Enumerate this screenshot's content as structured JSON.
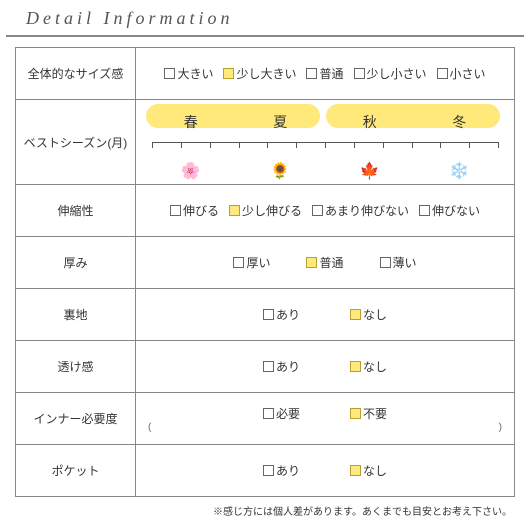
{
  "header": "Detail Information",
  "footnote": "※感じ方には個人差があります。あくまでも目安とお考え下さい。",
  "rows": {
    "size": {
      "label": "全体的なサイズ感",
      "options": [
        "大きい",
        "少し大きい",
        "普通",
        "少し小さい",
        "小さい"
      ],
      "selected": [
        1
      ]
    },
    "season": {
      "label": "ベストシーズン(月)",
      "labels": [
        "春",
        "夏",
        "秋",
        "冬"
      ],
      "highlight_ranges": [
        [
          0,
          1
        ],
        [
          2,
          3
        ]
      ],
      "icons": [
        "🌸",
        "🌻",
        "🍁",
        "❄️"
      ],
      "ticks": 13
    },
    "stretch": {
      "label": "伸縮性",
      "options": [
        "伸びる",
        "少し伸びる",
        "あまり伸びない",
        "伸びない"
      ],
      "selected": [
        1
      ]
    },
    "thickness": {
      "label": "厚み",
      "options": [
        "厚い",
        "普通",
        "薄い"
      ],
      "selected": [
        1
      ]
    },
    "lining": {
      "label": "裏地",
      "options": [
        "あり",
        "なし"
      ],
      "selected": [
        1
      ]
    },
    "sheer": {
      "label": "透け感",
      "options": [
        "あり",
        "なし"
      ],
      "selected": [
        1
      ]
    },
    "inner": {
      "label": "インナー必要度",
      "options": [
        "必要",
        "不要"
      ],
      "selected": [
        1
      ],
      "subnote_left": "(",
      "subnote_right": ")"
    },
    "pocket": {
      "label": "ポケット",
      "options": [
        "あり",
        "なし"
      ],
      "selected": [
        1
      ]
    }
  },
  "colors": {
    "highlight": "#ffe97a",
    "border": "#888888",
    "text": "#333333"
  }
}
